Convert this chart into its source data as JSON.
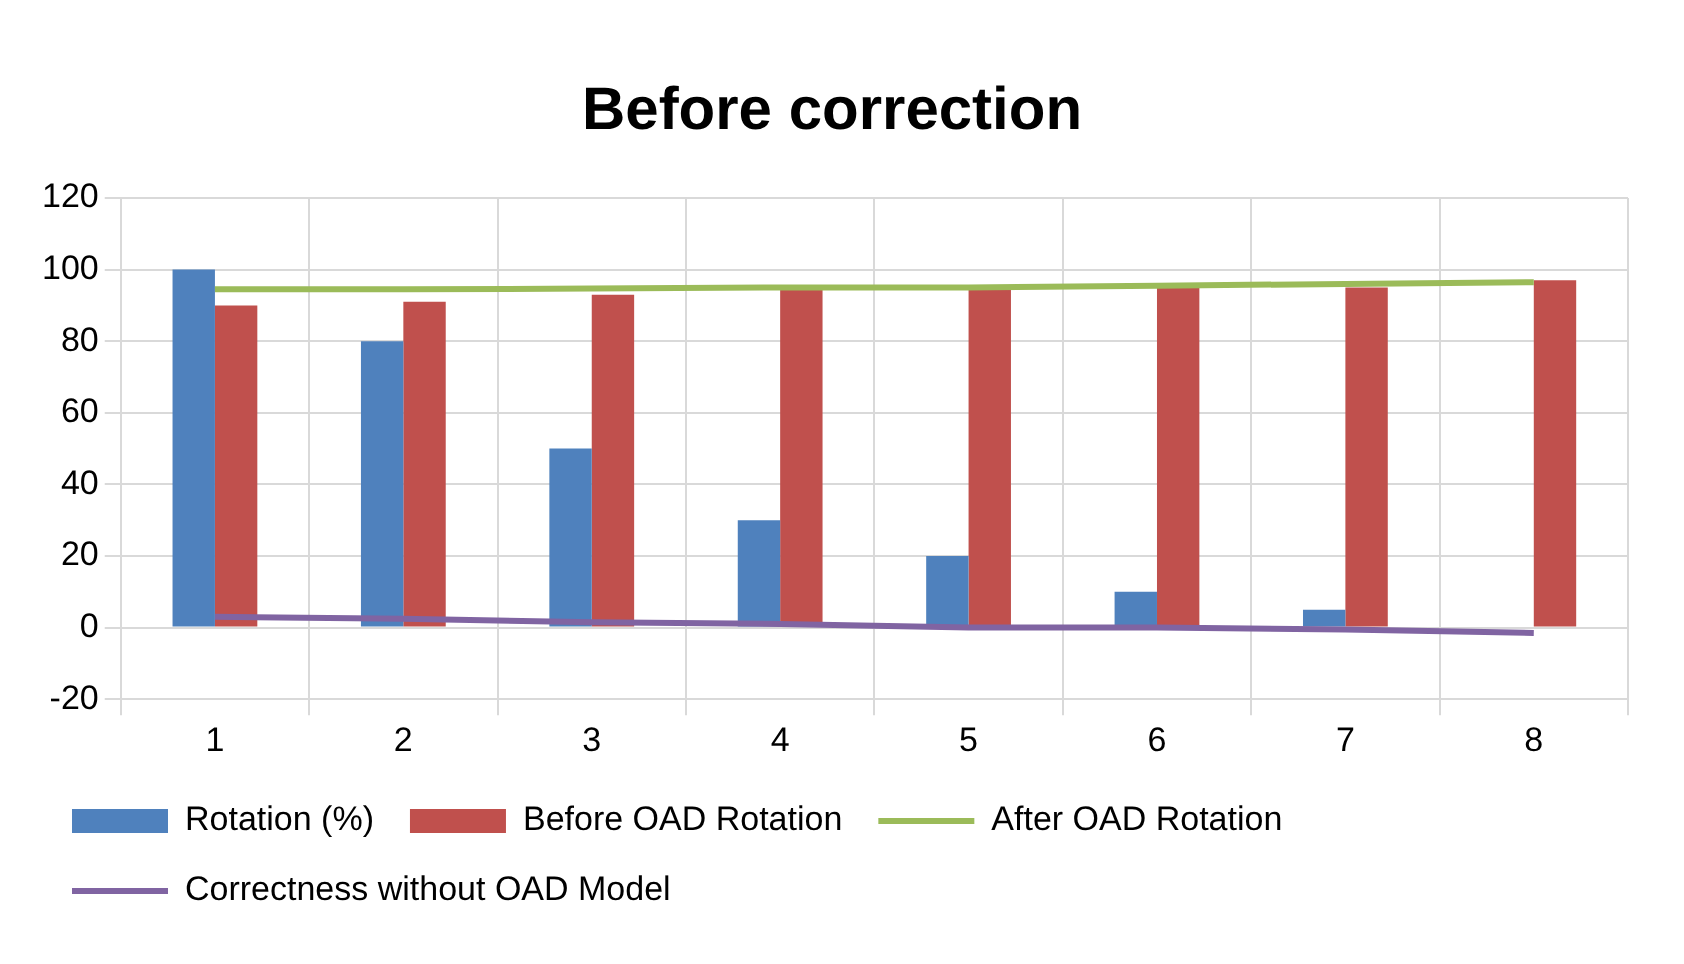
{
  "chart_data": {
    "type": "bar",
    "title": "Before correction",
    "categories": [
      "1",
      "2",
      "3",
      "4",
      "5",
      "6",
      "7",
      "8"
    ],
    "series": [
      {
        "name": "Rotation (%)",
        "color": "#4f81bd",
        "values": [
          100,
          80,
          50,
          30,
          20,
          10,
          5,
          0
        ]
      },
      {
        "name": "Before OAD Rotation",
        "color": "#c0504d",
        "values": [
          90,
          91,
          93,
          94.5,
          94.5,
          95,
          95,
          97
        ]
      },
      {
        "name": "After OAD Rotation",
        "type": "line",
        "color": "#9bbb59",
        "values": [
          94.5,
          94.5,
          94.7,
          95,
          95,
          95.5,
          96,
          96.5
        ]
      },
      {
        "name": "Correctness without OAD Model",
        "type": "line",
        "color": "#8064a2",
        "values": [
          3,
          2.5,
          1.5,
          1,
          0,
          0,
          -0.5,
          -1.5
        ]
      }
    ],
    "ylim": [
      -20,
      120
    ],
    "yticks": [
      -20,
      0,
      20,
      40,
      60,
      80,
      100,
      120
    ],
    "grid": true,
    "legend": "bottom",
    "marker": "none",
    "line_style": "solid"
  }
}
